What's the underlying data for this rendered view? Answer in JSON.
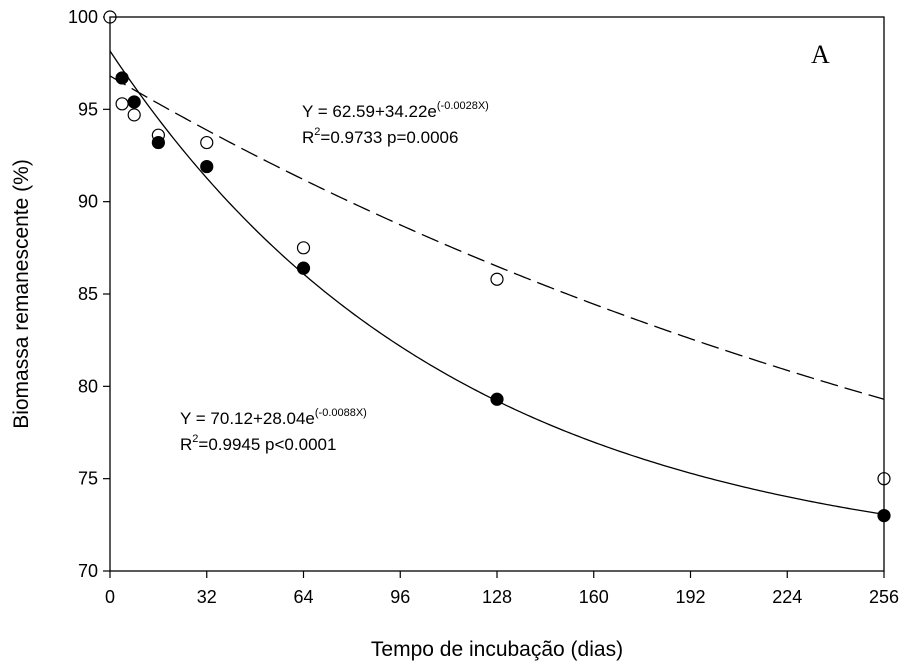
{
  "chart_data": {
    "type": "scatter",
    "panel_label": "A",
    "xlabel": "Tempo de incubação (dias)",
    "ylabel": "Biomassa remanescente (%)",
    "xlim": [
      0,
      256
    ],
    "ylim": [
      70,
      100
    ],
    "xticks": [
      0,
      32,
      64,
      96,
      128,
      160,
      192,
      224,
      256
    ],
    "yticks": [
      70,
      75,
      80,
      85,
      90,
      95,
      100
    ],
    "grid": false,
    "series": [
      {
        "marker": "open-circle",
        "line_style": "dashed",
        "x": [
          0,
          4,
          8,
          16,
          32,
          64,
          128,
          256
        ],
        "y": [
          100,
          95.3,
          94.7,
          93.6,
          93.2,
          87.5,
          85.8,
          75.0
        ],
        "fit": {
          "a": 62.59,
          "b": 34.22,
          "k": -0.0028
        },
        "equation": {
          "prefix": "Y = 62.59+34.22e",
          "exponent": "(-0.0028X)",
          "r2_prefix": "R",
          "r2_sup": "2",
          "r2_suffix": "=0.9733 p=0.0006"
        }
      },
      {
        "marker": "filled-circle",
        "line_style": "solid",
        "x": [
          4,
          8,
          16,
          32,
          64,
          128,
          256
        ],
        "y": [
          96.7,
          95.4,
          93.2,
          91.9,
          86.4,
          79.3,
          73.0
        ],
        "fit": {
          "a": 70.12,
          "b": 28.04,
          "k": -0.0088
        },
        "equation": {
          "prefix": "Y = 70.12+28.04e",
          "exponent": "(-0.0088X)",
          "r2_prefix": "R",
          "r2_sup": "2",
          "r2_suffix": "=0.9945 p<0.0001"
        }
      }
    ]
  }
}
